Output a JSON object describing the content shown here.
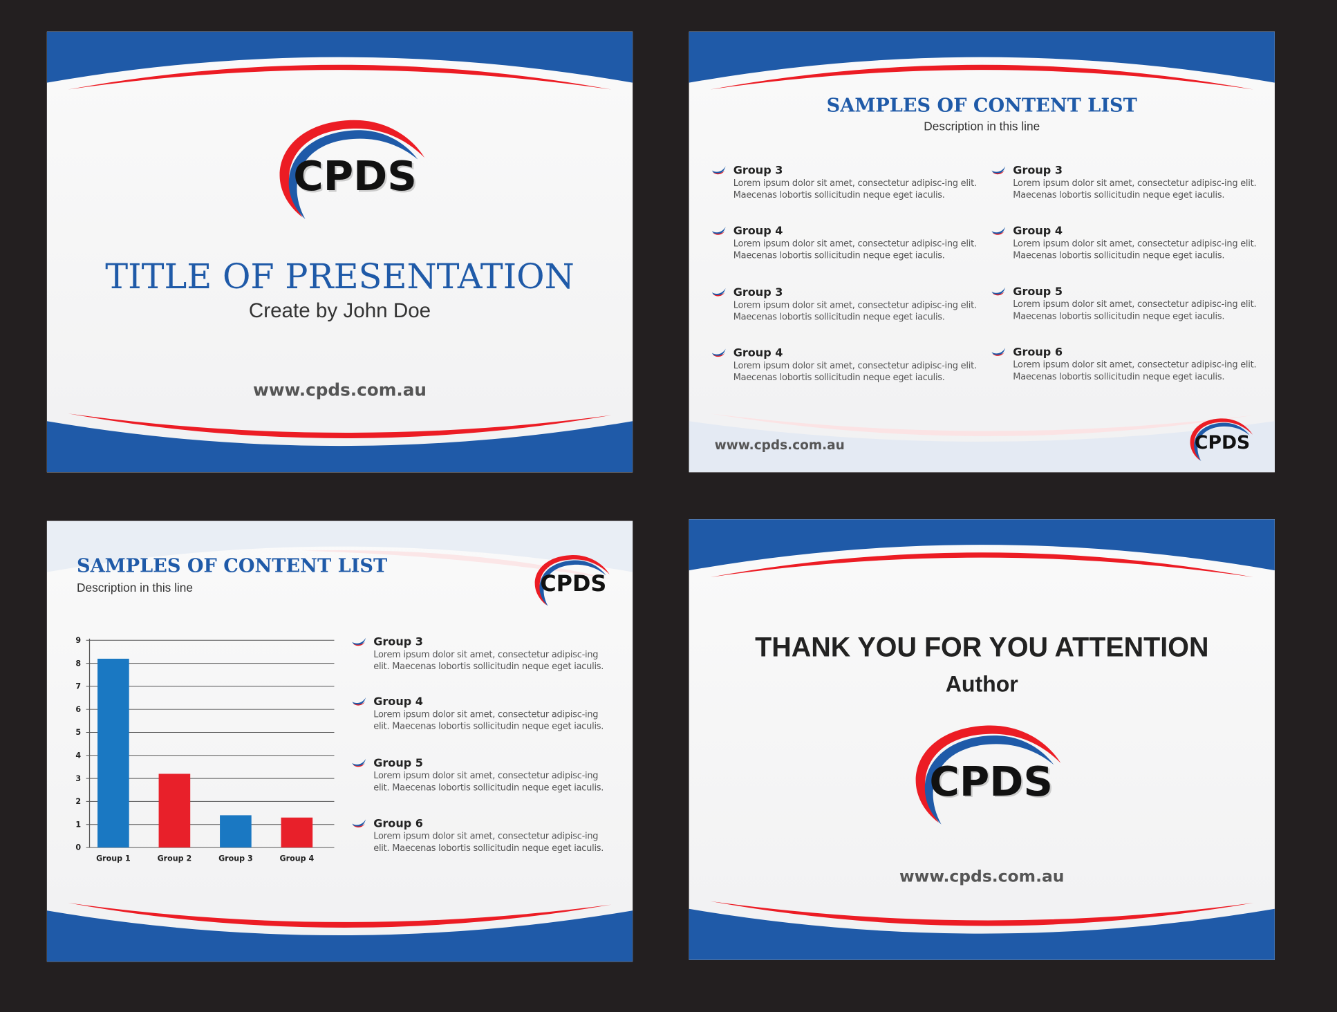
{
  "logo": {
    "text": "CPDS"
  },
  "colors": {
    "brand_blue": "#1f5aa8",
    "brand_red": "#ec1c24",
    "background": "#231f20"
  },
  "slide1": {
    "title": "TITLE OF PRESENTATION",
    "subtitle": "Create by John Doe",
    "url": "www.cpds.com.au"
  },
  "slide2": {
    "title": "SAMPLES OF CONTENT LIST",
    "description": "Description in this line",
    "url": "www.cpds.com.au",
    "items": [
      {
        "heading": "Group 3",
        "body": "Lorem ipsum dolor sit amet, consectetur adipisc-ing elit. Maecenas lobortis sollicitudin neque eget iaculis."
      },
      {
        "heading": "Group 4",
        "body": "Lorem ipsum dolor sit amet, consectetur adipisc-ing elit. Maecenas lobortis sollicitudin neque eget iaculis."
      },
      {
        "heading": "Group 3",
        "body": "Lorem ipsum dolor sit amet, consectetur adipisc-ing elit. Maecenas lobortis sollicitudin neque eget iaculis."
      },
      {
        "heading": "Group 4",
        "body": "Lorem ipsum dolor sit amet, consectetur adipisc-ing elit. Maecenas lobortis sollicitudin neque eget iaculis."
      },
      {
        "heading": "Group 3",
        "body": "Lorem ipsum dolor sit amet, consectetur adipisc-ing elit. Maecenas lobortis sollicitudin neque eget iaculis."
      },
      {
        "heading": "Group 4",
        "body": "Lorem ipsum dolor sit amet, consectetur adipisc-ing elit. Maecenas lobortis sollicitudin neque eget iaculis."
      },
      {
        "heading": "Group 5",
        "body": "Lorem ipsum dolor sit amet, consectetur adipisc-ing elit. Maecenas lobortis sollicitudin neque eget iaculis."
      },
      {
        "heading": "Group 6",
        "body": "Lorem ipsum dolor sit amet, consectetur adipisc-ing elit. Maecenas lobortis sollicitudin neque eget iaculis."
      }
    ]
  },
  "slide3": {
    "title": "SAMPLES OF CONTENT LIST",
    "description": "Description in this line",
    "items": [
      {
        "heading": "Group 3",
        "body": "Lorem ipsum dolor sit amet, consectetur adipisc-ing elit. Maecenas lobortis sollicitudin neque eget iaculis."
      },
      {
        "heading": "Group 4",
        "body": "Lorem ipsum dolor sit amet, consectetur adipisc-ing elit. Maecenas lobortis sollicitudin neque eget iaculis."
      },
      {
        "heading": "Group 5",
        "body": "Lorem ipsum dolor sit amet, consectetur adipisc-ing elit. Maecenas lobortis sollicitudin neque eget iaculis."
      },
      {
        "heading": "Group 6",
        "body": "Lorem ipsum dolor sit amet, consectetur adipisc-ing elit. Maecenas lobortis sollicitudin neque eget iaculis."
      }
    ]
  },
  "slide4": {
    "title": "THANK YOU FOR YOU ATTENTION",
    "author": "Author",
    "url": "www.cpds.com.au"
  },
  "chart_data": {
    "type": "bar",
    "categories": [
      "Group 1",
      "Group 2",
      "Group 3",
      "Group 4"
    ],
    "values": [
      8.2,
      3.2,
      1.4,
      1.3
    ],
    "colors": [
      "#1a78c2",
      "#e8202a",
      "#1a78c2",
      "#e8202a"
    ],
    "ylim": [
      0,
      9
    ],
    "yticks": [
      0,
      1,
      2,
      3,
      4,
      5,
      6,
      7,
      8,
      9
    ],
    "grid": true,
    "title": "",
    "xlabel": "",
    "ylabel": ""
  }
}
